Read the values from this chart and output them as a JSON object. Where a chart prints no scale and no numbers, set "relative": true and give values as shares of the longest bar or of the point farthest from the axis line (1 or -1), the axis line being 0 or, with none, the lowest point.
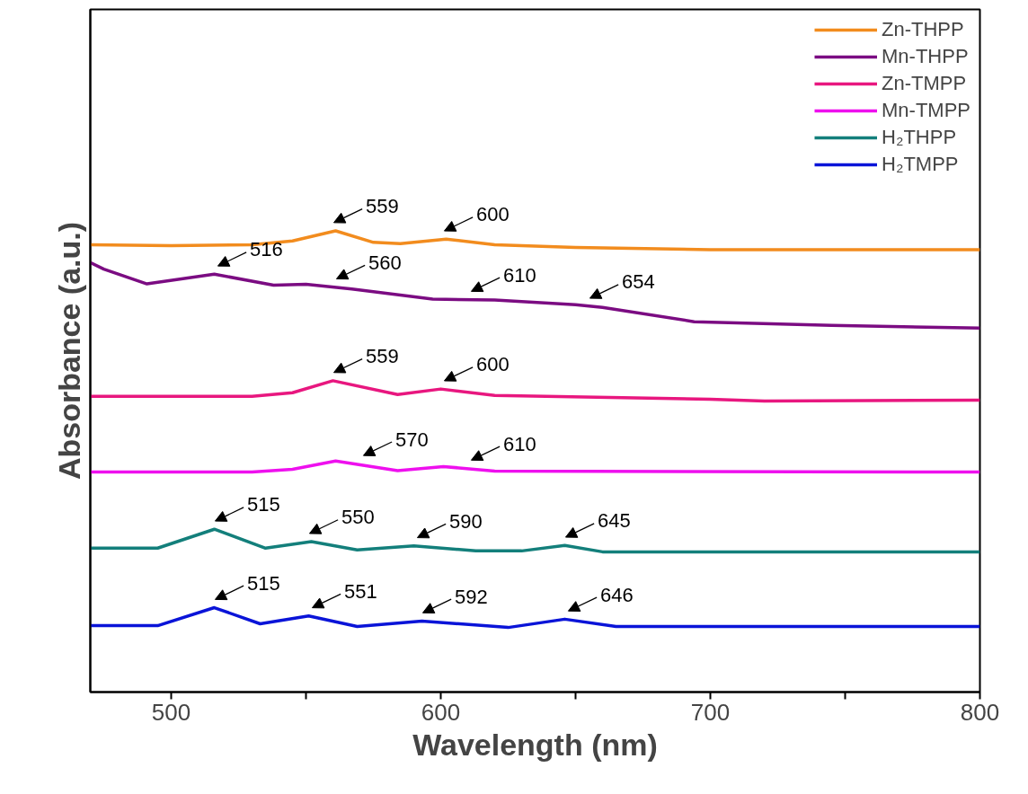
{
  "chart_data": {
    "type": "line",
    "relative": true,
    "xlabel": "Wavelength (nm)",
    "ylabel": "Absorbance (a.u.)",
    "xlim": [
      470,
      800
    ],
    "xticks": [
      500,
      {
        "value": 550,
        "label": null
      },
      600,
      {
        "value": 650,
        "label": null
      },
      700,
      {
        "value": 750,
        "label": null
      },
      800
    ],
    "legend": "top right",
    "grid": false,
    "series": [
      {
        "name": "Zn-THPP",
        "color": "#f28c1e",
        "x": [
          470,
          500,
          530,
          545,
          561,
          575,
          585,
          602,
          620,
          650,
          700,
          800
        ],
        "values": [
          0.97,
          0.968,
          0.97,
          0.978,
          1.0,
          0.975,
          0.972,
          0.982,
          0.97,
          0.964,
          0.959,
          0.959
        ]
      },
      {
        "name": "Mn-THPP",
        "color": "#7b0c82",
        "x": [
          470,
          475,
          491,
          516,
          538,
          550,
          567,
          597,
          620,
          650,
          660,
          694,
          745,
          800
        ],
        "values": [
          0.931,
          0.917,
          0.885,
          0.906,
          0.882,
          0.884,
          0.874,
          0.852,
          0.85,
          0.84,
          0.834,
          0.803,
          0.795,
          0.789
        ]
      },
      {
        "name": "Zn-TMPP",
        "color": "#e8177f",
        "x": [
          470,
          530,
          545,
          560,
          584,
          600,
          620,
          700,
          720,
          800
        ],
        "values": [
          0.641,
          0.641,
          0.649,
          0.675,
          0.645,
          0.657,
          0.643,
          0.635,
          0.631,
          0.633
        ]
      },
      {
        "name": "Mn-TMPP",
        "color": "#ee10ee",
        "x": [
          470,
          530,
          545,
          561,
          584,
          601,
          620,
          800
        ],
        "values": [
          0.477,
          0.477,
          0.483,
          0.501,
          0.48,
          0.489,
          0.479,
          0.477
        ]
      },
      {
        "name": "H₂THPP",
        "color": "#137f7b",
        "x": [
          470,
          495,
          516,
          535,
          552,
          569,
          590,
          613,
          630,
          646,
          660,
          800
        ],
        "values": [
          0.312,
          0.312,
          0.353,
          0.312,
          0.326,
          0.308,
          0.317,
          0.306,
          0.306,
          0.318,
          0.304,
          0.304
        ]
      },
      {
        "name": "H₂TMPP",
        "color": "#0a14d8",
        "x": [
          470,
          495,
          516,
          533,
          551,
          569,
          593,
          625,
          646,
          665,
          800
        ],
        "values": [
          0.144,
          0.144,
          0.183,
          0.148,
          0.165,
          0.142,
          0.154,
          0.14,
          0.158,
          0.142,
          0.142
        ]
      }
    ],
    "annotations": [
      {
        "text": "559",
        "x": 559,
        "y": 1.0
      },
      {
        "text": "600",
        "x": 600,
        "y": 0.982
      },
      {
        "text": "516",
        "x": 516,
        "y": 0.906
      },
      {
        "text": "560",
        "x": 560,
        "y": 0.878
      },
      {
        "text": "610",
        "x": 610,
        "y": 0.851
      },
      {
        "text": "654",
        "x": 654,
        "y": 0.836
      },
      {
        "text": "559",
        "x": 559,
        "y": 0.675
      },
      {
        "text": "600",
        "x": 600,
        "y": 0.657
      },
      {
        "text": "570",
        "x": 570,
        "y": 0.495
      },
      {
        "text": "610",
        "x": 610,
        "y": 0.485
      },
      {
        "text": "515",
        "x": 515,
        "y": 0.353
      },
      {
        "text": "550",
        "x": 550,
        "y": 0.326
      },
      {
        "text": "590",
        "x": 590,
        "y": 0.317
      },
      {
        "text": "645",
        "x": 645,
        "y": 0.318
      },
      {
        "text": "515",
        "x": 515,
        "y": 0.183
      },
      {
        "text": "551",
        "x": 551,
        "y": 0.165
      },
      {
        "text": "592",
        "x": 592,
        "y": 0.154
      },
      {
        "text": "646",
        "x": 646,
        "y": 0.158
      }
    ]
  }
}
